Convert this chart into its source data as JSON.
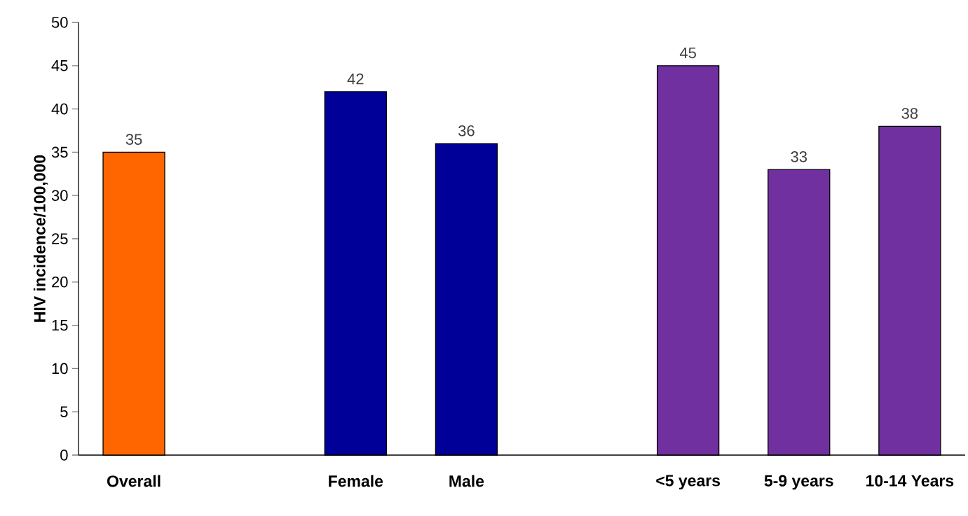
{
  "chart_data": {
    "type": "bar",
    "ylabel": "HIV incidence/100,000",
    "categories": [
      "Overall",
      null,
      "Female",
      "Male",
      null,
      "<5 years",
      "5-9 years",
      "10-14 Years"
    ],
    "values": [
      35,
      null,
      42,
      36,
      null,
      45,
      33,
      38
    ],
    "colors": [
      "#ff6600",
      null,
      "#000099",
      "#000099",
      null,
      "#7030a0",
      "#7030a0",
      "#7030a0"
    ],
    "ylim": [
      0,
      50
    ],
    "yticks": [
      0,
      5,
      10,
      15,
      20,
      25,
      30,
      35,
      40,
      45,
      50
    ],
    "data_labels": true
  }
}
